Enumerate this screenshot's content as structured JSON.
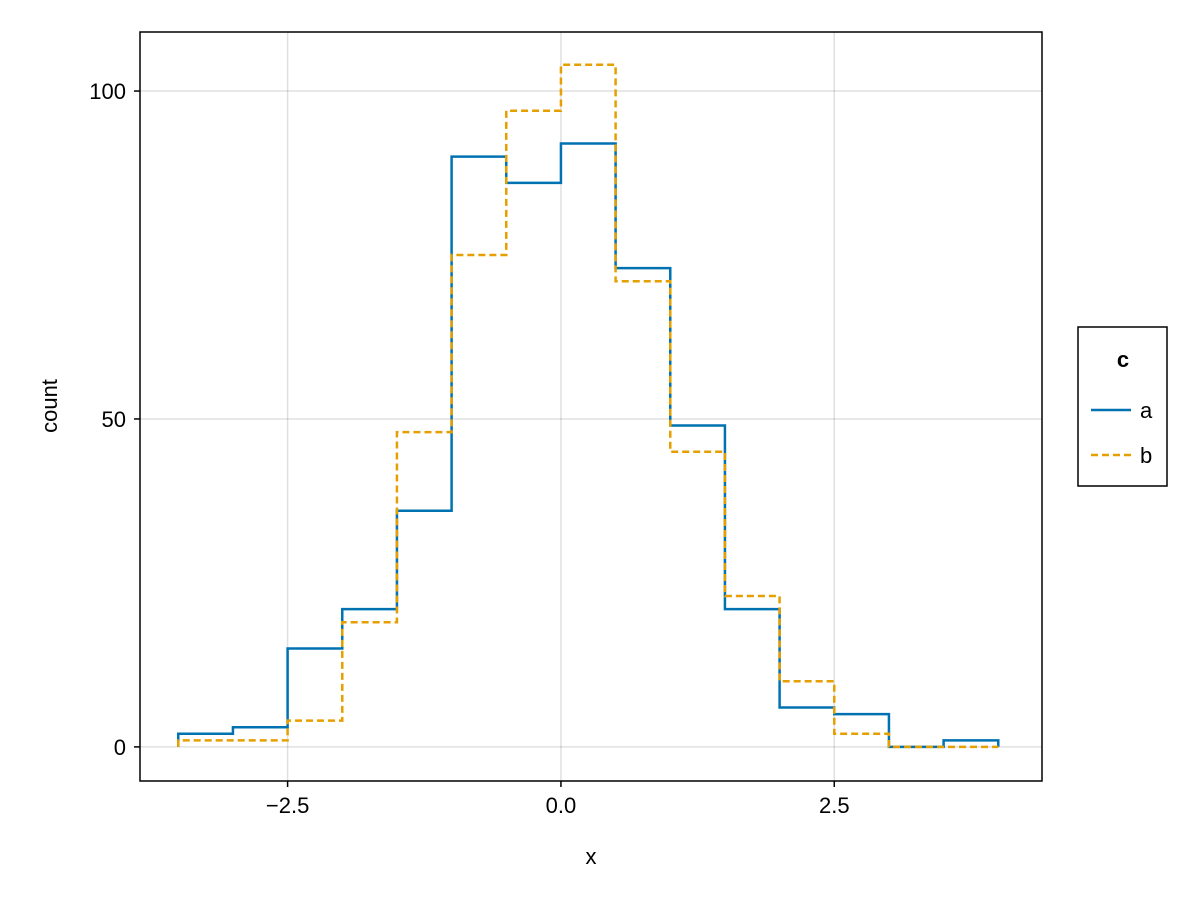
{
  "chart_data": {
    "type": "line",
    "subtype": "step-histogram",
    "xlabel": "x",
    "ylabel": "count",
    "xlim": [
      -3.85,
      4.4
    ],
    "ylim": [
      -5.2,
      109
    ],
    "xticks": [
      -2.5,
      0.0,
      2.5
    ],
    "xtick_labels": [
      "−2.5",
      "0.0",
      "2.5"
    ],
    "yticks": [
      0,
      50,
      100
    ],
    "ytick_labels": [
      "0",
      "50",
      "100"
    ],
    "grid": true,
    "bin_edges": [
      -3.5,
      -3.0,
      -2.5,
      -2.0,
      -1.5,
      -1.0,
      -0.5,
      0.0,
      0.5,
      1.0,
      1.5,
      2.0,
      2.5,
      3.0,
      3.5,
      4.0
    ],
    "series": [
      {
        "name": "a",
        "color": "#0072B2",
        "dash": "solid",
        "values": [
          2,
          3,
          15,
          21,
          36,
          90,
          86,
          92,
          73,
          49,
          21,
          6,
          5,
          0,
          1
        ]
      },
      {
        "name": "b",
        "color": "#E69F00",
        "dash": "dashed",
        "values": [
          1,
          1,
          4,
          19,
          48,
          75,
          97,
          104,
          71,
          45,
          23,
          10,
          2,
          0,
          0
        ]
      }
    ],
    "legend": {
      "title": "c",
      "position": "right"
    }
  }
}
